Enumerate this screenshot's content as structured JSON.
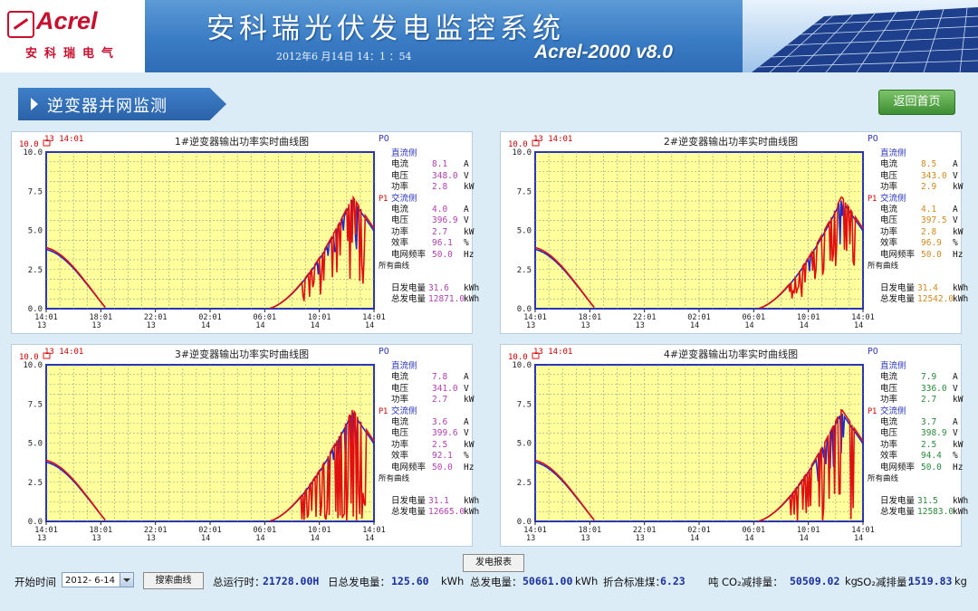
{
  "header": {
    "logo": "Acrel",
    "logo_cn": "安科瑞电气",
    "title": "安科瑞光伏发电监控系统",
    "datetime": "2012年6 月14日 14：1 ：54",
    "version": "Acrel-2000 v8.0"
  },
  "section": {
    "title": "逆变器并网监测",
    "home_button": "返回首页"
  },
  "axis": {
    "y_ticks": [
      "0.0",
      "2.5",
      "5.0",
      "7.5",
      "10.0"
    ],
    "x_ticks": [
      {
        "t": "14:01",
        "d": "13"
      },
      {
        "t": "18:01",
        "d": "13"
      },
      {
        "t": "22:01",
        "d": "13"
      },
      {
        "t": "02:01",
        "d": "14"
      },
      {
        "t": "06:01",
        "d": "14"
      },
      {
        "t": "10:01",
        "d": "14"
      },
      {
        "t": "14:01",
        "d": "14"
      }
    ],
    "p0_label": "P0",
    "p1_label": "P1",
    "all_curves": "所有曲线",
    "ymax_label": "10.0",
    "stamp": "13 14:01"
  },
  "labels": {
    "dc": "直流侧",
    "ac": "交流侧",
    "current": "电流",
    "voltage": "电压",
    "power": "功率",
    "efficiency": "效率",
    "grid_freq": "电网频率",
    "daily_energy": "日发电量",
    "total_energy": "总发电量"
  },
  "panels": [
    {
      "title": "1#逆变器输出功率实时曲线图",
      "dc": {
        "current": "8.1",
        "voltage": "348.0",
        "power": "2.8"
      },
      "ac": {
        "current": "4.0",
        "voltage": "396.9",
        "power": "2.7"
      },
      "efficiency": "96.1",
      "freq": "50.0",
      "daily": "31.6",
      "total": "12871.0",
      "value_color": "#b040b0"
    },
    {
      "title": "2#逆变器输出功率实时曲线图",
      "dc": {
        "current": "8.5",
        "voltage": "343.0",
        "power": "2.9"
      },
      "ac": {
        "current": "4.1",
        "voltage": "397.5",
        "power": "2.8"
      },
      "efficiency": "96.9",
      "freq": "50.0",
      "daily": "31.4",
      "total": "12542.0",
      "value_color": "#d08a20"
    },
    {
      "title": "3#逆变器输出功率实时曲线图",
      "dc": {
        "current": "7.8",
        "voltage": "341.0",
        "power": "2.7"
      },
      "ac": {
        "current": "3.6",
        "voltage": "399.6",
        "power": "2.5"
      },
      "efficiency": "92.1",
      "freq": "50.0",
      "daily": "31.1",
      "total": "12665.0",
      "value_color": "#b040b0"
    },
    {
      "title": "4#逆变器输出功率实时曲线图",
      "dc": {
        "current": "7.9",
        "voltage": "336.0",
        "power": "2.7"
      },
      "ac": {
        "current": "3.7",
        "voltage": "398.9",
        "power": "2.5"
      },
      "efficiency": "94.4",
      "freq": "50.0",
      "daily": "31.5",
      "total": "12583.0",
      "value_color": "#2a8a3a"
    }
  ],
  "units": {
    "a": "A",
    "v": "V",
    "kw": "kW",
    "pct": "%",
    "hz": "Hz",
    "kwh": "kWh"
  },
  "footer": {
    "report_button": "发电报表",
    "start_time_label": "开始时间",
    "date_value": "2012- 6-14",
    "search_button": "搜索曲线",
    "total_runtime_label": "总运行时：",
    "total_runtime": "21728.00H",
    "daily_total_label": "日总发电量：",
    "daily_total": "125.60",
    "daily_total_unit": "kWh",
    "total_gen_label": "总发电量：",
    "total_gen": "50661.00",
    "total_gen_unit": "kWh",
    "coal_label": "折合标准煤：",
    "coal": "6.23",
    "coal_unit": "吨",
    "co2_label": "CO₂减排量：",
    "co2": "50509.02",
    "co2_unit": "kg",
    "so2_label": "SO₂减排量：",
    "so2": "1519.83",
    "so2_unit": "kg"
  },
  "colors": {
    "plot_bg": "#ffff9c",
    "grid": "#8aa08a",
    "red": "#e01010",
    "blue": "#1a2ad0"
  }
}
